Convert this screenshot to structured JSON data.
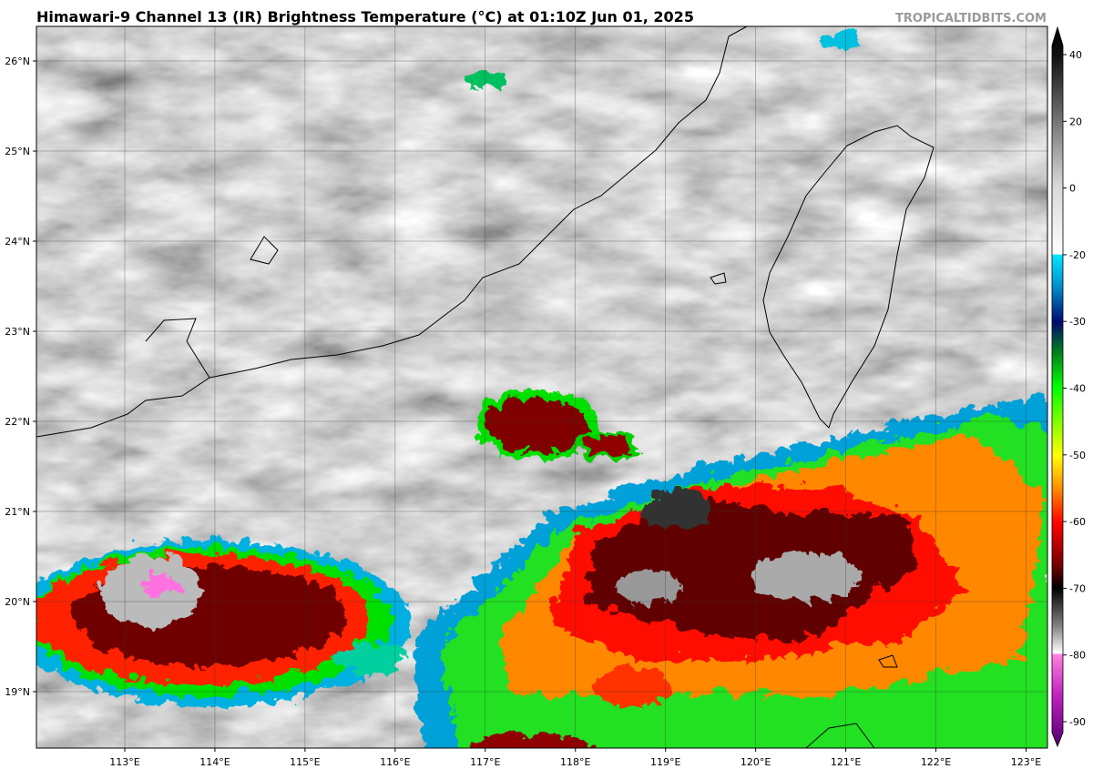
{
  "title": "Himawari-9 Channel 13 (IR) Brightness Temperature (°C) at 01:10Z Jun 01, 2025",
  "watermark": "TROPICALTIDBITS.COM",
  "map": {
    "lon_labels": [
      "113°E",
      "114°E",
      "115°E",
      "116°E",
      "117°E",
      "118°E",
      "119°E",
      "120°E",
      "121°E",
      "122°E",
      "123°E"
    ],
    "lat_labels": [
      "26°N",
      "25°N",
      "24°N",
      "23°N",
      "22°N",
      "21°N",
      "20°N",
      "19°N"
    ]
  },
  "colorbar": {
    "ticks": [
      40,
      20,
      0,
      -20,
      -30,
      -40,
      -50,
      -60,
      -70,
      -80,
      -90
    ]
  }
}
